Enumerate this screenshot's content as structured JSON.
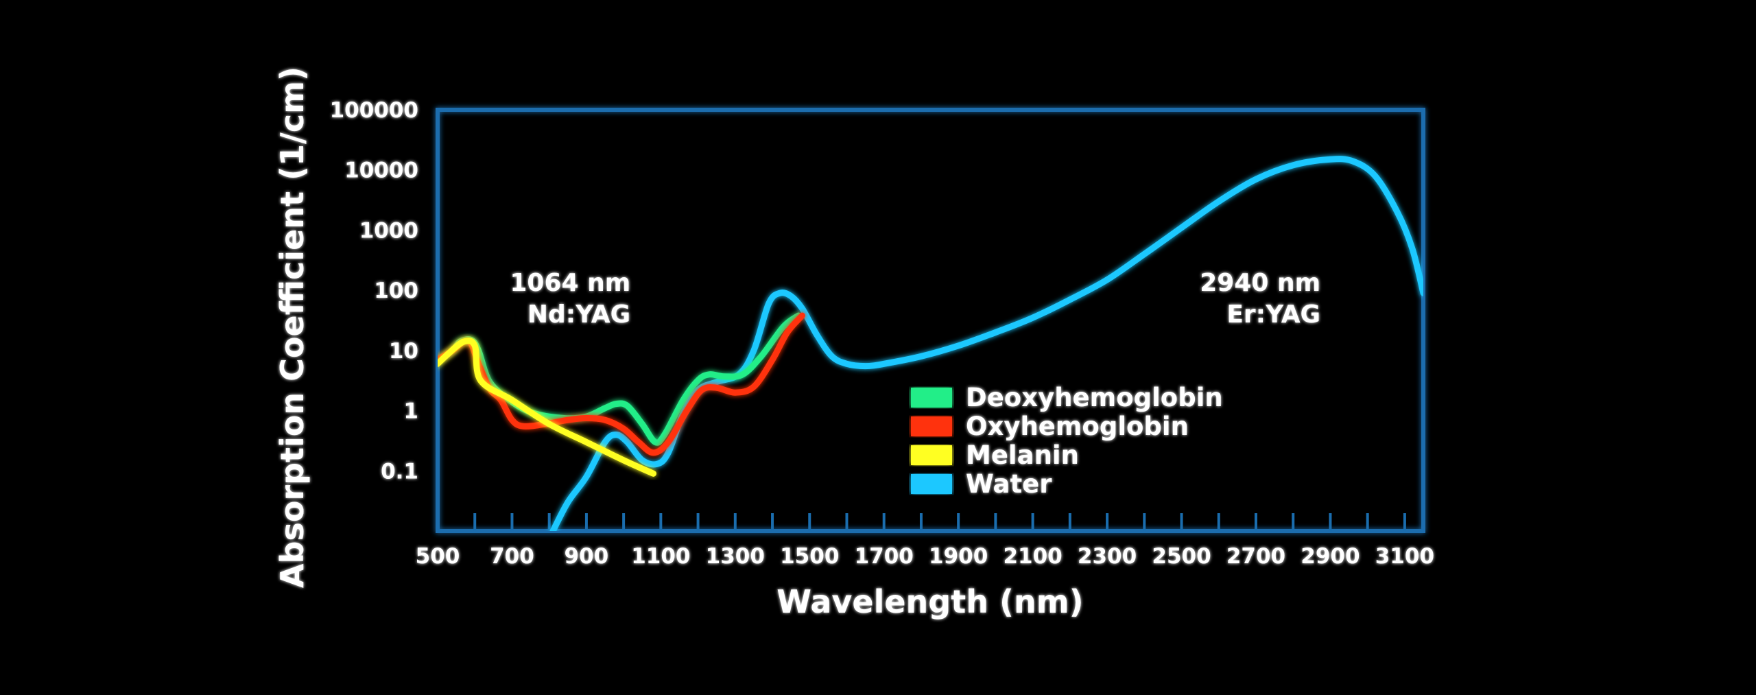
{
  "chart_data": {
    "type": "line",
    "xlabel": "Wavelength (nm)",
    "ylabel": "Absorption Coefficient (1/cm)",
    "x_scale": "linear",
    "y_scale": "log",
    "xlim": [
      500,
      3150
    ],
    "ylim": [
      0.01,
      100000
    ],
    "x_ticks": [
      "500",
      "700",
      "900",
      "1100",
      "1300",
      "1500",
      "1700",
      "1900",
      "2100",
      "2300",
      "2500",
      "2700",
      "2900",
      "3100"
    ],
    "y_ticks": [
      "0.1",
      "1",
      "10",
      "100",
      "1000",
      "10000",
      "100000"
    ],
    "grid": false,
    "legend_position": "center-right",
    "series": [
      {
        "name": "Deoxyhemoglobin",
        "color": "#22ee88",
        "points": [
          [
            500,
            7
          ],
          [
            540,
            10
          ],
          [
            560,
            14
          ],
          [
            590,
            15
          ],
          [
            610,
            10
          ],
          [
            640,
            3
          ],
          [
            700,
            1.4
          ],
          [
            760,
            0.9
          ],
          [
            840,
            0.75
          ],
          [
            900,
            0.8
          ],
          [
            950,
            1.1
          ],
          [
            980,
            1.3
          ],
          [
            1010,
            1.2
          ],
          [
            1050,
            0.6
          ],
          [
            1085,
            0.3
          ],
          [
            1110,
            0.4
          ],
          [
            1160,
            1.5
          ],
          [
            1200,
            3.2
          ],
          [
            1230,
            4
          ],
          [
            1270,
            3.7
          ],
          [
            1320,
            4
          ],
          [
            1370,
            8
          ],
          [
            1430,
            25
          ],
          [
            1470,
            38
          ]
        ]
      },
      {
        "name": "Oxyhemoglobin",
        "color": "#ff3311",
        "points": [
          [
            500,
            7
          ],
          [
            540,
            10
          ],
          [
            570,
            14
          ],
          [
            590,
            13
          ],
          [
            610,
            6
          ],
          [
            640,
            2.3
          ],
          [
            670,
            1.5
          ],
          [
            700,
            0.7
          ],
          [
            730,
            0.55
          ],
          [
            790,
            0.6
          ],
          [
            850,
            0.7
          ],
          [
            900,
            0.75
          ],
          [
            950,
            0.7
          ],
          [
            1000,
            0.5
          ],
          [
            1040,
            0.3
          ],
          [
            1080,
            0.2
          ],
          [
            1120,
            0.3
          ],
          [
            1170,
            1
          ],
          [
            1210,
            2.2
          ],
          [
            1250,
            2.4
          ],
          [
            1300,
            2
          ],
          [
            1350,
            2.5
          ],
          [
            1400,
            7
          ],
          [
            1440,
            20
          ],
          [
            1480,
            38
          ]
        ]
      },
      {
        "name": "Melanin",
        "color": "#ffff22",
        "points": [
          [
            500,
            6
          ],
          [
            530,
            9
          ],
          [
            570,
            14
          ],
          [
            600,
            12
          ],
          [
            615,
            3.2
          ],
          [
            700,
            1.5
          ],
          [
            800,
            0.6
          ],
          [
            900,
            0.3
          ],
          [
            1000,
            0.15
          ],
          [
            1080,
            0.09
          ]
        ]
      },
      {
        "name": "Water",
        "color": "#1cc8ff",
        "points": [
          [
            810,
            0.01
          ],
          [
            850,
            0.03
          ],
          [
            900,
            0.08
          ],
          [
            950,
            0.3
          ],
          [
            980,
            0.4
          ],
          [
            1010,
            0.3
          ],
          [
            1050,
            0.15
          ],
          [
            1090,
            0.13
          ],
          [
            1120,
            0.2
          ],
          [
            1160,
            0.9
          ],
          [
            1200,
            2.2
          ],
          [
            1250,
            3
          ],
          [
            1310,
            4
          ],
          [
            1350,
            10
          ],
          [
            1390,
            60
          ],
          [
            1420,
            90
          ],
          [
            1450,
            80
          ],
          [
            1480,
            50
          ],
          [
            1520,
            18
          ],
          [
            1560,
            8
          ],
          [
            1600,
            6
          ],
          [
            1650,
            5.5
          ],
          [
            1700,
            6
          ],
          [
            1800,
            8
          ],
          [
            1900,
            12
          ],
          [
            2000,
            20
          ],
          [
            2100,
            35
          ],
          [
            2200,
            70
          ],
          [
            2300,
            150
          ],
          [
            2400,
            400
          ],
          [
            2500,
            1100
          ],
          [
            2600,
            3000
          ],
          [
            2700,
            7000
          ],
          [
            2800,
            12000
          ],
          [
            2900,
            15000
          ],
          [
            2960,
            14000
          ],
          [
            3020,
            8000
          ],
          [
            3080,
            2000
          ],
          [
            3120,
            500
          ],
          [
            3150,
            90
          ]
        ]
      }
    ],
    "annotations": [
      {
        "line1": "1064 nm",
        "line2": "Nd:YAG",
        "x": 1085,
        "color": "#ff1111"
      },
      {
        "line1": "2940 nm",
        "line2": "Er:YAG",
        "x": 2940,
        "color": "#ff1111"
      }
    ]
  }
}
